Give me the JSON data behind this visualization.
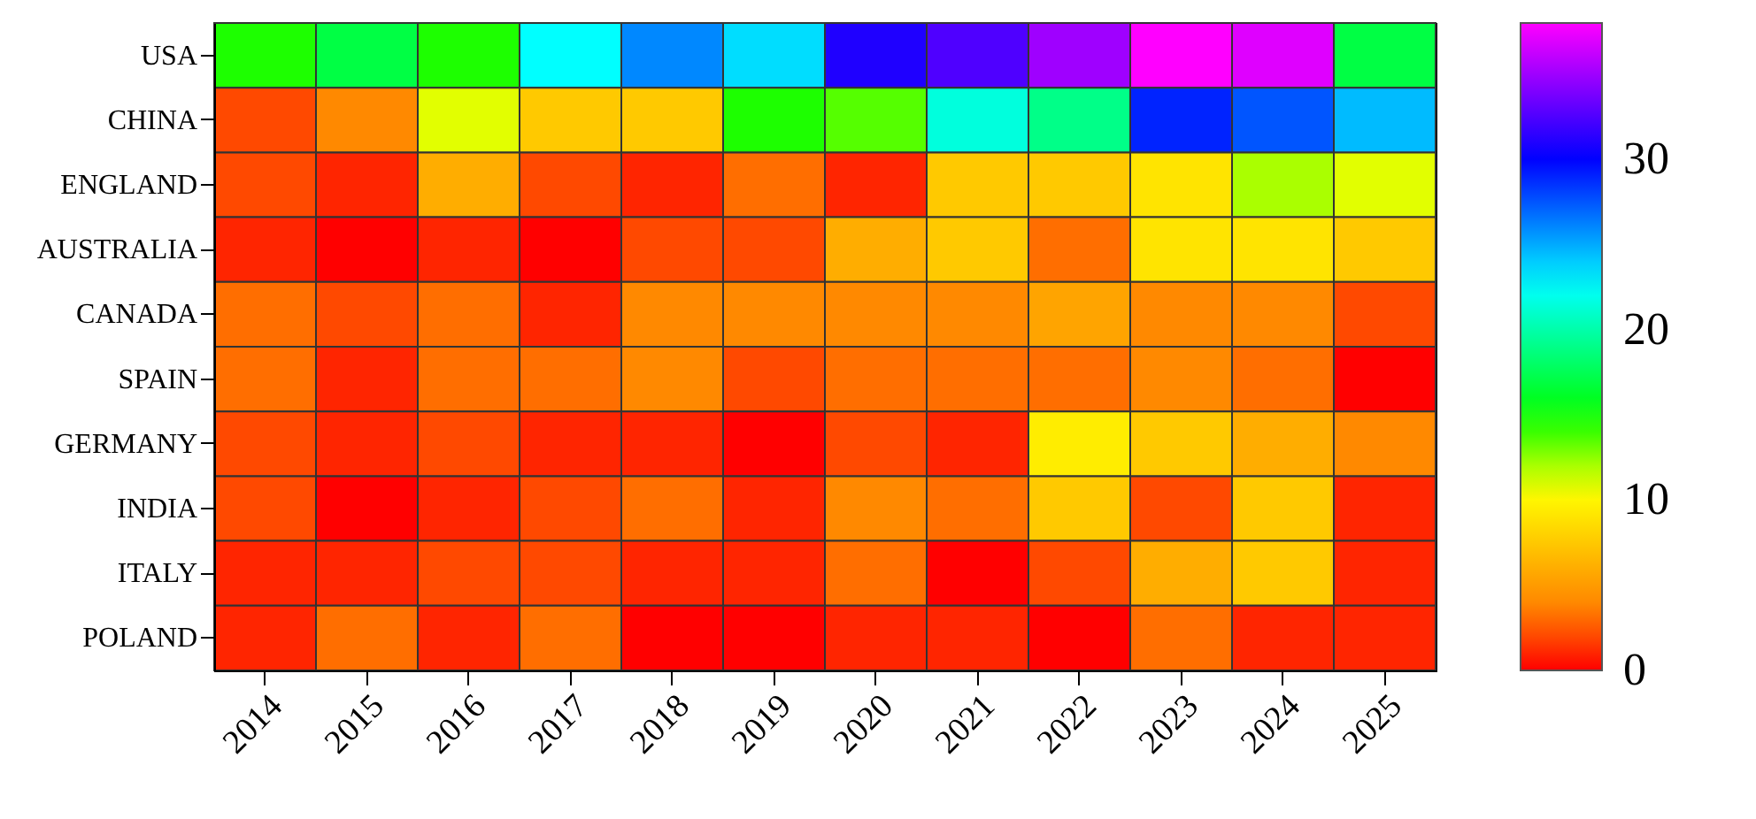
{
  "chart_data": {
    "type": "heatmap",
    "categories": [
      "2014",
      "2015",
      "2016",
      "2017",
      "2018",
      "2019",
      "2020",
      "2021",
      "2022",
      "2023",
      "2024",
      "2025"
    ],
    "y_categories": [
      "USA",
      "CHINA",
      "ENGLAND",
      "AUSTRALIA",
      "CANADA",
      "SPAIN",
      "GERMANY",
      "INDIA",
      "ITALY",
      "POLAND"
    ],
    "cells": [
      [
        14.5,
        17,
        14.5,
        22.5,
        26,
        23.5,
        31,
        32.5,
        35,
        38,
        37,
        17
      ],
      [
        2,
        4,
        11,
        7.5,
        7.5,
        14.5,
        13.5,
        21.5,
        19,
        29,
        27.5,
        24.5
      ],
      [
        2,
        1,
        6,
        2,
        1,
        3,
        1,
        7.5,
        7.5,
        9,
        12,
        11
      ],
      [
        1,
        0,
        1,
        0,
        2,
        2,
        6,
        7.5,
        3,
        9,
        9,
        7.5
      ],
      [
        3,
        2,
        3,
        1,
        4,
        4,
        4,
        4,
        5.5,
        4,
        4,
        2
      ],
      [
        3,
        1,
        3,
        3,
        4,
        2,
        3,
        3,
        3,
        4,
        3,
        0
      ],
      [
        2,
        1,
        2,
        1,
        1,
        0,
        2,
        1,
        9.5,
        7.5,
        6,
        4
      ],
      [
        2,
        0,
        1,
        2,
        3,
        1,
        4,
        3,
        7.5,
        2,
        7.5,
        1
      ],
      [
        1,
        1,
        2,
        2,
        1,
        1,
        3,
        0,
        2,
        6,
        7.5,
        1
      ],
      [
        1,
        3,
        1,
        3,
        0,
        0,
        1,
        1,
        0,
        3,
        1,
        1
      ]
    ],
    "clim": [
      0,
      38
    ],
    "cticks": [
      0,
      10,
      20,
      30
    ]
  }
}
